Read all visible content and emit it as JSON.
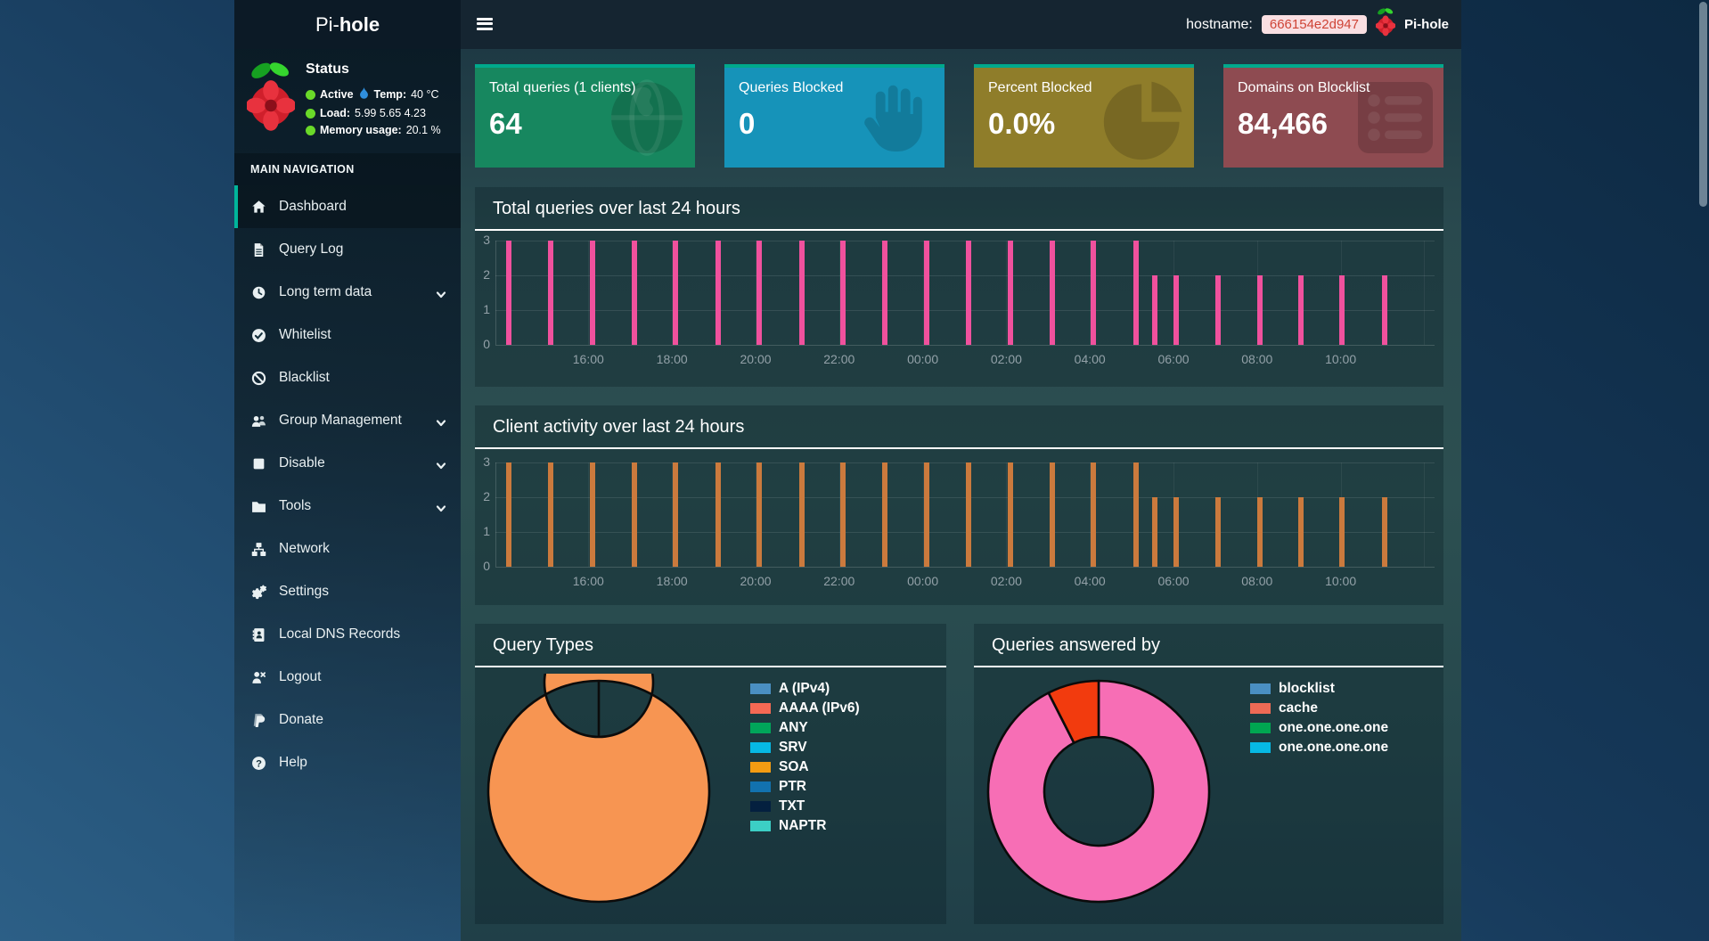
{
  "topbar": {
    "brand_pi": "Pi-",
    "brand_bold": "hole",
    "hostname_label": "hostname:",
    "hostname_value": "666154e2d947",
    "brand_right": "Pi-hole"
  },
  "sidebar": {
    "status": {
      "title": "Status",
      "active_label": "Active",
      "temp_label": "Temp:",
      "temp_value": "40 °C",
      "load_label": "Load:",
      "load_value": "5.99  5.65  4.23",
      "memory_label": "Memory usage:",
      "memory_value": "20.1 %"
    },
    "nav_header": "MAIN NAVIGATION",
    "items": [
      {
        "label": "Dashboard",
        "icon": "home",
        "active": true,
        "chevron": false
      },
      {
        "label": "Query Log",
        "icon": "file",
        "active": false,
        "chevron": false
      },
      {
        "label": "Long term data",
        "icon": "clock",
        "active": false,
        "chevron": true
      },
      {
        "label": "Whitelist",
        "icon": "check-circle",
        "active": false,
        "chevron": false
      },
      {
        "label": "Blacklist",
        "icon": "ban",
        "active": false,
        "chevron": false
      },
      {
        "label": "Group Management",
        "icon": "users",
        "active": false,
        "chevron": true
      },
      {
        "label": "Disable",
        "icon": "stop",
        "active": false,
        "chevron": true
      },
      {
        "label": "Tools",
        "icon": "folder",
        "active": false,
        "chevron": true
      },
      {
        "label": "Network",
        "icon": "sitemap",
        "active": false,
        "chevron": false
      },
      {
        "label": "Settings",
        "icon": "gears",
        "active": false,
        "chevron": false
      },
      {
        "label": "Local DNS Records",
        "icon": "address-book",
        "active": false,
        "chevron": false
      },
      {
        "label": "Logout",
        "icon": "user-times",
        "active": false,
        "chevron": false
      },
      {
        "label": "Donate",
        "icon": "paypal",
        "active": false,
        "chevron": false
      },
      {
        "label": "Help",
        "icon": "question-circle",
        "active": false,
        "chevron": false
      }
    ]
  },
  "accent": "#00a98c",
  "cards": [
    {
      "label": "Total queries (1 clients)",
      "value": "64",
      "color": "#17875f",
      "icon": "globe"
    },
    {
      "label": "Queries Blocked",
      "value": "0",
      "color": "#1693b9",
      "icon": "hand"
    },
    {
      "label": "Percent Blocked",
      "value": "0.0%",
      "color": "#8f7d2a",
      "icon": "pie"
    },
    {
      "label": "Domains on Blocklist",
      "value": "84,466",
      "color": "#8e4b51",
      "icon": "list"
    }
  ],
  "chart_data": [
    {
      "type": "bar",
      "title": "Total queries over last 24 hours",
      "color": "#f0519d",
      "ylim": [
        0,
        3
      ],
      "yticks": [
        "0",
        "1",
        "2",
        "3"
      ],
      "grid": true,
      "bars": [
        {
          "x": 0.014,
          "v": 3
        },
        {
          "x": 0.059,
          "v": 3
        },
        {
          "x": 0.103,
          "v": 3
        },
        {
          "x": 0.148,
          "v": 3
        },
        {
          "x": 0.192,
          "v": 3
        },
        {
          "x": 0.237,
          "v": 3
        },
        {
          "x": 0.281,
          "v": 3
        },
        {
          "x": 0.326,
          "v": 3
        },
        {
          "x": 0.37,
          "v": 3
        },
        {
          "x": 0.415,
          "v": 3
        },
        {
          "x": 0.459,
          "v": 3
        },
        {
          "x": 0.504,
          "v": 3
        },
        {
          "x": 0.548,
          "v": 3
        },
        {
          "x": 0.593,
          "v": 3
        },
        {
          "x": 0.637,
          "v": 3
        },
        {
          "x": 0.682,
          "v": 3
        },
        {
          "x": 0.702,
          "v": 2
        },
        {
          "x": 0.725,
          "v": 2
        },
        {
          "x": 0.769,
          "v": 2
        },
        {
          "x": 0.814,
          "v": 2
        },
        {
          "x": 0.858,
          "v": 2
        },
        {
          "x": 0.901,
          "v": 2
        },
        {
          "x": 0.947,
          "v": 2
        }
      ],
      "xticks": [
        {
          "x": 0.099,
          "label": "16:00"
        },
        {
          "x": 0.188,
          "label": "18:00"
        },
        {
          "x": 0.277,
          "label": "20:00"
        },
        {
          "x": 0.366,
          "label": "22:00"
        },
        {
          "x": 0.455,
          "label": "00:00"
        },
        {
          "x": 0.544,
          "label": "02:00"
        },
        {
          "x": 0.633,
          "label": "04:00"
        },
        {
          "x": 0.722,
          "label": "06:00"
        },
        {
          "x": 0.811,
          "label": "08:00"
        },
        {
          "x": 0.9,
          "label": "10:00"
        },
        {
          "x": 0.989,
          "label": ""
        }
      ]
    },
    {
      "type": "bar",
      "title": "Client activity over last 24 hours",
      "color": "#cb7a3d",
      "ylim": [
        0,
        3
      ],
      "yticks": [
        "0",
        "1",
        "2",
        "3"
      ],
      "grid": true,
      "bars": [
        {
          "x": 0.014,
          "v": 3
        },
        {
          "x": 0.059,
          "v": 3
        },
        {
          "x": 0.103,
          "v": 3
        },
        {
          "x": 0.148,
          "v": 3
        },
        {
          "x": 0.192,
          "v": 3
        },
        {
          "x": 0.237,
          "v": 3
        },
        {
          "x": 0.281,
          "v": 3
        },
        {
          "x": 0.326,
          "v": 3
        },
        {
          "x": 0.37,
          "v": 3
        },
        {
          "x": 0.415,
          "v": 3
        },
        {
          "x": 0.459,
          "v": 3
        },
        {
          "x": 0.504,
          "v": 3
        },
        {
          "x": 0.548,
          "v": 3
        },
        {
          "x": 0.593,
          "v": 3
        },
        {
          "x": 0.637,
          "v": 3
        },
        {
          "x": 0.682,
          "v": 3
        },
        {
          "x": 0.702,
          "v": 2
        },
        {
          "x": 0.725,
          "v": 2
        },
        {
          "x": 0.769,
          "v": 2
        },
        {
          "x": 0.814,
          "v": 2
        },
        {
          "x": 0.858,
          "v": 2
        },
        {
          "x": 0.901,
          "v": 2
        },
        {
          "x": 0.947,
          "v": 2
        }
      ],
      "xticks": [
        {
          "x": 0.099,
          "label": "16:00"
        },
        {
          "x": 0.188,
          "label": "18:00"
        },
        {
          "x": 0.277,
          "label": "20:00"
        },
        {
          "x": 0.366,
          "label": "22:00"
        },
        {
          "x": 0.455,
          "label": "00:00"
        },
        {
          "x": 0.544,
          "label": "02:00"
        },
        {
          "x": 0.633,
          "label": "04:00"
        },
        {
          "x": 0.722,
          "label": "06:00"
        },
        {
          "x": 0.811,
          "label": "08:00"
        },
        {
          "x": 0.9,
          "label": "10:00"
        },
        {
          "x": 0.989,
          "label": ""
        }
      ]
    },
    {
      "type": "donut",
      "title": "Query Types",
      "slices": [
        {
          "color": "#f79552",
          "frac": 1.0
        }
      ],
      "legend": [
        {
          "label": "A (IPv4)",
          "color": "#4a8fc2"
        },
        {
          "label": "AAAA (IPv6)",
          "color": "#f56954"
        },
        {
          "label": "ANY",
          "color": "#00a65a"
        },
        {
          "label": "SRV",
          "color": "#06b9e4"
        },
        {
          "label": "SOA",
          "color": "#f39c12"
        },
        {
          "label": "PTR",
          "color": "#1272af"
        },
        {
          "label": "TXT",
          "color": "#04203f"
        },
        {
          "label": "NAPTR",
          "color": "#3ccfc5"
        }
      ]
    },
    {
      "type": "donut",
      "title": "Queries answered by",
      "slices": [
        {
          "color": "#f76eb5",
          "frac": 0.925
        },
        {
          "color": "#f23b0e",
          "frac": 0.075
        }
      ],
      "legend": [
        {
          "label": "blocklist",
          "color": "#4a8fc2"
        },
        {
          "label": "cache",
          "color": "#ee6a55"
        },
        {
          "label": "one.one.one.one",
          "color": "#00a651"
        },
        {
          "label": "one.one.one.one",
          "color": "#06b9e4"
        }
      ]
    }
  ]
}
